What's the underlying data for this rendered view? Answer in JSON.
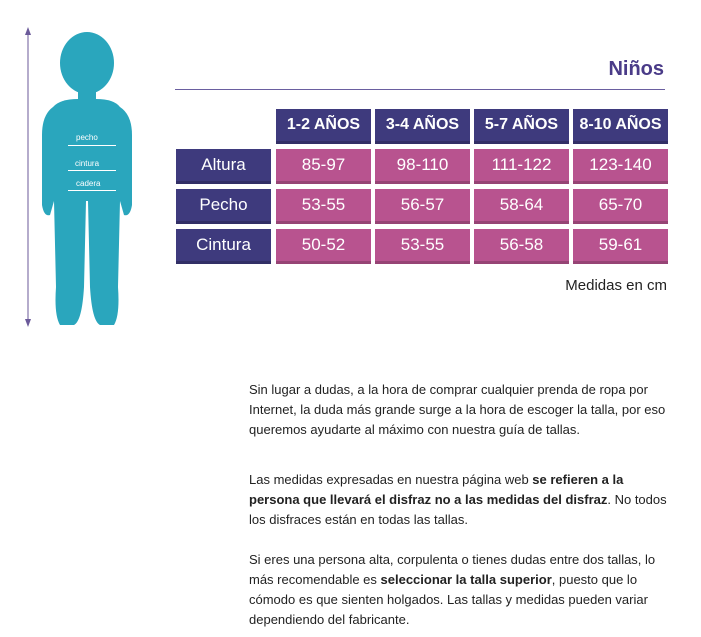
{
  "figure": {
    "labels": {
      "chest": "pecho",
      "waist": "cintura",
      "hip": "cadera"
    },
    "silhouette_color": "#2aa6bd"
  },
  "title": "Niños",
  "table": {
    "columns": [
      "1-2 AÑOS",
      "3-4 AÑOS",
      "5-7 AÑOS",
      "8-10 AÑOS"
    ],
    "rows": [
      {
        "label": "Altura",
        "values": [
          "85-97",
          "98-110",
          "111-122",
          "123-140"
        ]
      },
      {
        "label": "Pecho",
        "values": [
          "53-55",
          "56-57",
          "58-64",
          "65-70"
        ]
      },
      {
        "label": "Cintura",
        "values": [
          "50-52",
          "53-55",
          "56-58",
          "59-61"
        ]
      }
    ],
    "header_color": "#3e3a7d",
    "value_color": "#b8538f"
  },
  "units": "Medidas en cm",
  "paragraphs": {
    "p1": "Sin lugar a dudas, a la hora de comprar cualquier prenda de ropa por Internet, la duda más grande surge a la hora de escoger la talla, por eso queremos ayudarte al máximo con nuestra guía de tallas.",
    "p2_a": "Las medidas expresadas en nuestra página web ",
    "p2_b": "se refieren a la persona que llevará el disfraz no a las medidas del disfraz",
    "p2_c": ". No todos los disfraces están en todas las tallas.",
    "p3_a": "Si eres una persona alta, corpulenta o tienes dudas entre dos tallas, lo más recomendable es ",
    "p3_b": "seleccionar la talla superior",
    "p3_c": ", puesto que lo cómodo es que sienten holgados. Las tallas y medidas pueden variar dependiendo del fabricante."
  }
}
